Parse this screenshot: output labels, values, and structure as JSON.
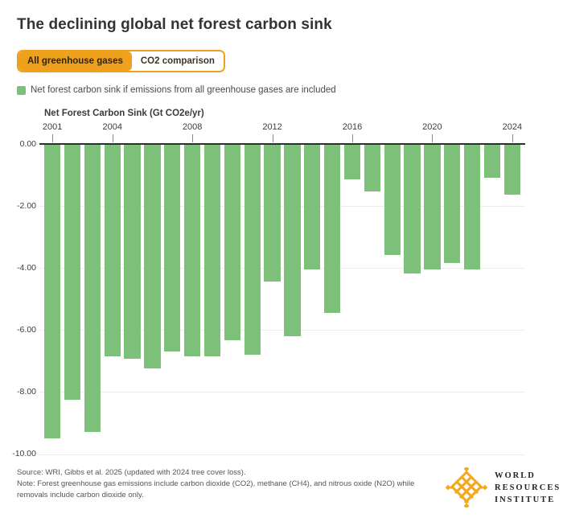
{
  "header": {
    "title": "The declining global net forest carbon sink"
  },
  "tabs": [
    {
      "label": "All greenhouse gases",
      "active": true
    },
    {
      "label": "CO2 comparison",
      "active": false
    }
  ],
  "legend": {
    "label": "Net forest carbon sink if emissions from all greenhouse gases are included",
    "swatch_color": "#7dc07a"
  },
  "chart_data": {
    "type": "bar",
    "title": "Net Forest Carbon Sink (Gt CO2e/yr)",
    "categories": [
      2001,
      2002,
      2003,
      2004,
      2005,
      2006,
      2007,
      2008,
      2009,
      2010,
      2011,
      2012,
      2013,
      2014,
      2015,
      2016,
      2017,
      2018,
      2019,
      2020,
      2021,
      2022,
      2023,
      2024
    ],
    "values": [
      -9.5,
      -8.25,
      -9.3,
      -6.85,
      -6.95,
      -7.25,
      -6.7,
      -6.85,
      -6.85,
      -6.35,
      -6.8,
      -4.45,
      -6.2,
      -4.05,
      -5.45,
      -1.15,
      -1.55,
      -3.6,
      -4.2,
      -4.05,
      -3.85,
      -4.05,
      -1.1,
      -1.65
    ],
    "bar_color": "#7dc07a",
    "ylim": [
      -10,
      0
    ],
    "ytick_labels": [
      "0.00",
      "-2.00",
      "-4.00",
      "-6.00",
      "-8.00",
      "-10.00"
    ],
    "xtick_years": [
      2001,
      2004,
      2008,
      2012,
      2016,
      2020,
      2024
    ],
    "grid": true,
    "legend_position": "top-left"
  },
  "footer": {
    "source": "Source: WRI, Gibbs et al. 2025 (updated with 2024 tree cover loss).",
    "note": "Note: Forest greenhouse gas emissions include carbon dioxide (CO2), methane (CH4), and nitrous oxide (N2O) while removals include carbon dioxide only."
  },
  "logo": {
    "lines": [
      "WORLD",
      "RESOURCES",
      "INSTITUTE"
    ],
    "orange": "#f6a81c"
  },
  "icons": {
    "logo": "wri-weave-icon"
  },
  "colors": {
    "accent_orange": "#efa11e",
    "bar_green": "#7dc07a",
    "axis_dark": "#2d2d2d",
    "gridline": "#ececec"
  }
}
